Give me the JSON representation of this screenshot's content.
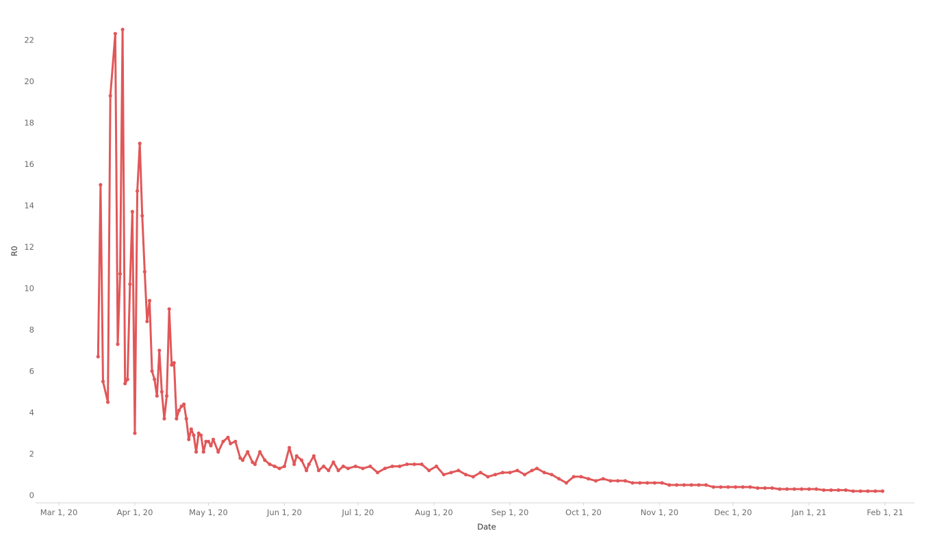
{
  "chart_data": {
    "type": "line",
    "title": "",
    "xlabel": "Date",
    "ylabel": "R0",
    "x_ticks": [
      "Mar 1, 20",
      "Apr 1, 20",
      "May 1, 20",
      "Jun 1, 20",
      "Jul 1, 20",
      "Aug 1, 20",
      "Sep 1, 20",
      "Oct 1, 20",
      "Nov 1, 20",
      "Dec 1, 20",
      "Jan 1, 21",
      "Feb 1, 21"
    ],
    "y_ticks": [
      "0",
      "2",
      "4",
      "6",
      "8",
      "10",
      "12",
      "14",
      "16",
      "18",
      "20",
      "22"
    ],
    "xlim": [
      "2020-03-01",
      "2021-02-01"
    ],
    "ylim": [
      0,
      23
    ],
    "grid": false,
    "line_color": "#e15759",
    "series": [
      {
        "x": [
          "2020-03-17",
          "2020-03-18",
          "2020-03-19",
          "2020-03-21",
          "2020-03-22",
          "2020-03-24",
          "2020-03-25",
          "2020-03-26",
          "2020-03-27",
          "2020-03-28",
          "2020-03-29",
          "2020-03-30",
          "2020-03-31",
          "2020-04-01",
          "2020-04-02",
          "2020-04-03",
          "2020-04-04",
          "2020-04-05",
          "2020-04-06",
          "2020-04-07",
          "2020-04-08",
          "2020-04-09",
          "2020-04-10",
          "2020-04-11",
          "2020-04-12",
          "2020-04-13",
          "2020-04-14",
          "2020-04-15",
          "2020-04-16",
          "2020-04-17",
          "2020-04-18",
          "2020-04-19",
          "2020-04-20",
          "2020-04-21",
          "2020-04-22",
          "2020-04-23",
          "2020-04-24",
          "2020-04-25",
          "2020-04-26",
          "2020-04-27",
          "2020-04-28",
          "2020-04-29",
          "2020-04-30",
          "2020-05-01",
          "2020-05-02",
          "2020-05-03",
          "2020-05-05",
          "2020-05-07",
          "2020-05-09",
          "2020-05-10",
          "2020-05-12",
          "2020-05-14",
          "2020-05-15",
          "2020-05-17",
          "2020-05-19",
          "2020-05-20",
          "2020-05-22",
          "2020-05-24",
          "2020-05-26",
          "2020-05-28",
          "2020-05-30",
          "2020-06-01",
          "2020-06-03",
          "2020-06-05",
          "2020-06-06",
          "2020-06-08",
          "2020-06-10",
          "2020-06-11",
          "2020-06-13",
          "2020-06-15",
          "2020-06-17",
          "2020-06-19",
          "2020-06-21",
          "2020-06-23",
          "2020-06-25",
          "2020-06-27",
          "2020-06-30",
          "2020-07-03",
          "2020-07-06",
          "2020-07-09",
          "2020-07-12",
          "2020-07-15",
          "2020-07-18",
          "2020-07-21",
          "2020-07-24",
          "2020-07-27",
          "2020-07-30",
          "2020-08-02",
          "2020-08-05",
          "2020-08-08",
          "2020-08-11",
          "2020-08-14",
          "2020-08-17",
          "2020-08-20",
          "2020-08-23",
          "2020-08-26",
          "2020-08-29",
          "2020-09-01",
          "2020-09-04",
          "2020-09-07",
          "2020-09-10",
          "2020-09-12",
          "2020-09-15",
          "2020-09-18",
          "2020-09-21",
          "2020-09-24",
          "2020-09-27",
          "2020-09-30",
          "2020-10-03",
          "2020-10-06",
          "2020-10-09",
          "2020-10-12",
          "2020-10-15",
          "2020-10-18",
          "2020-10-21",
          "2020-10-24",
          "2020-10-27",
          "2020-10-30",
          "2020-11-02",
          "2020-11-05",
          "2020-11-08",
          "2020-11-11",
          "2020-11-14",
          "2020-11-17",
          "2020-11-20",
          "2020-11-23",
          "2020-11-26",
          "2020-11-29",
          "2020-12-02",
          "2020-12-05",
          "2020-12-08",
          "2020-12-11",
          "2020-12-14",
          "2020-12-17",
          "2020-12-20",
          "2020-12-23",
          "2020-12-26",
          "2020-12-29",
          "2021-01-01",
          "2021-01-04",
          "2021-01-07",
          "2021-01-10",
          "2021-01-13",
          "2021-01-16",
          "2021-01-19",
          "2021-01-22",
          "2021-01-25",
          "2021-01-28",
          "2021-01-31"
        ],
        "values": [
          6.7,
          15.0,
          5.5,
          4.5,
          19.3,
          22.3,
          7.3,
          10.7,
          22.5,
          5.4,
          5.6,
          10.2,
          13.7,
          3.0,
          14.7,
          17.0,
          13.5,
          10.8,
          8.4,
          9.4,
          6.0,
          5.6,
          4.8,
          7.0,
          5.0,
          3.7,
          4.8,
          9.0,
          6.3,
          6.4,
          3.7,
          4.1,
          4.3,
          4.4,
          3.7,
          2.7,
          3.2,
          2.9,
          2.1,
          3.0,
          2.9,
          2.1,
          2.6,
          2.6,
          2.4,
          2.7,
          2.1,
          2.6,
          2.8,
          2.5,
          2.6,
          1.8,
          1.7,
          2.1,
          1.6,
          1.5,
          2.1,
          1.7,
          1.5,
          1.4,
          1.3,
          1.4,
          2.3,
          1.5,
          1.9,
          1.7,
          1.2,
          1.5,
          1.9,
          1.2,
          1.4,
          1.2,
          1.6,
          1.2,
          1.4,
          1.3,
          1.4,
          1.3,
          1.4,
          1.1,
          1.3,
          1.4,
          1.4,
          1.5,
          1.5,
          1.5,
          1.2,
          1.4,
          1.0,
          1.1,
          1.2,
          1.0,
          0.9,
          1.1,
          0.9,
          1.0,
          1.1,
          1.1,
          1.2,
          1.0,
          1.2,
          1.3,
          1.1,
          1.0,
          0.8,
          0.6,
          0.9,
          0.9,
          0.8,
          0.7,
          0.8,
          0.7,
          0.7,
          0.7,
          0.6,
          0.6,
          0.6,
          0.6,
          0.6,
          0.5,
          0.5,
          0.5,
          0.5,
          0.5,
          0.5,
          0.4,
          0.4,
          0.4,
          0.4,
          0.4,
          0.4,
          0.35,
          0.35,
          0.35,
          0.3,
          0.3,
          0.3,
          0.3,
          0.3,
          0.3,
          0.25,
          0.25,
          0.25,
          0.25,
          0.2,
          0.2,
          0.2,
          0.2,
          0.2
        ]
      }
    ]
  }
}
